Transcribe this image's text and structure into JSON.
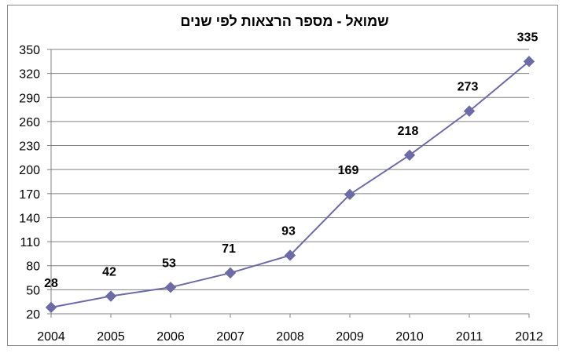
{
  "chart_data": {
    "type": "line",
    "title": "שמואל - מספר הרצאות לפי שנים",
    "xlabel": "",
    "ylabel": "",
    "categories": [
      "2004",
      "2005",
      "2006",
      "2007",
      "2008",
      "2009",
      "2010",
      "2011",
      "2012"
    ],
    "series": [
      {
        "values": [
          28,
          42,
          53,
          71,
          93,
          169,
          218,
          273,
          335
        ]
      }
    ],
    "ylim": [
      20,
      350
    ],
    "yticks": [
      20,
      50,
      80,
      110,
      140,
      170,
      200,
      230,
      260,
      290,
      320,
      350
    ],
    "grid": "horizontal",
    "legend": "none",
    "marker": "diamond",
    "colors": {
      "series": "#6D6BA5",
      "grid": "#808080",
      "axis": "#808080"
    }
  }
}
